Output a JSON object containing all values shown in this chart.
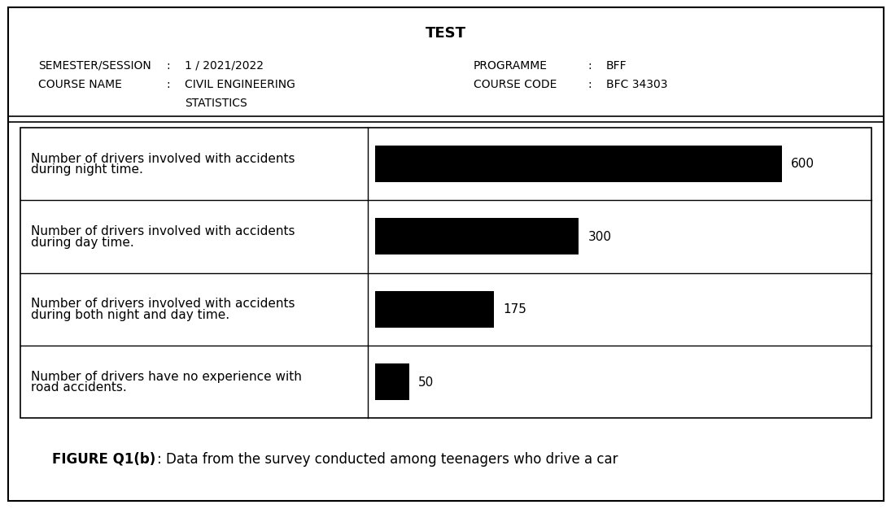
{
  "title": "TEST",
  "sem_label": "SEMESTER/SESSION",
  "sem_colon": ":",
  "sem_value": "1 / 2021/2022",
  "course_label": "COURSE NAME",
  "course_colon": ":",
  "course_value_1": "CIVIL ENGINEERING",
  "course_value_2": "STATISTICS",
  "prog_label": "PROGRAMME",
  "prog_colon": ":",
  "prog_value": "BFF",
  "code_label": "COURSE CODE",
  "code_colon": ":",
  "code_value": "BFC 34303",
  "row_labels": [
    "Number of drivers involved with accidents\nduring night time.",
    "Number of drivers involved with accidents\nduring day time.",
    "Number of drivers involved with accidents\nduring both night and day time.",
    "Number of drivers have no experience with\nroad accidents."
  ],
  "values": [
    600,
    300,
    175,
    50
  ],
  "max_value": 725,
  "bar_color": "#000000",
  "figure_caption_bold": "FIGURE Q1(b)",
  "figure_caption_normal": ": Data from the survey conducted among teenagers who drive a car",
  "background_color": "#ffffff",
  "border_color": "#000000",
  "font_size_title": 13,
  "font_size_header": 10,
  "font_size_label": 11,
  "font_size_value": 11,
  "font_size_caption": 12
}
